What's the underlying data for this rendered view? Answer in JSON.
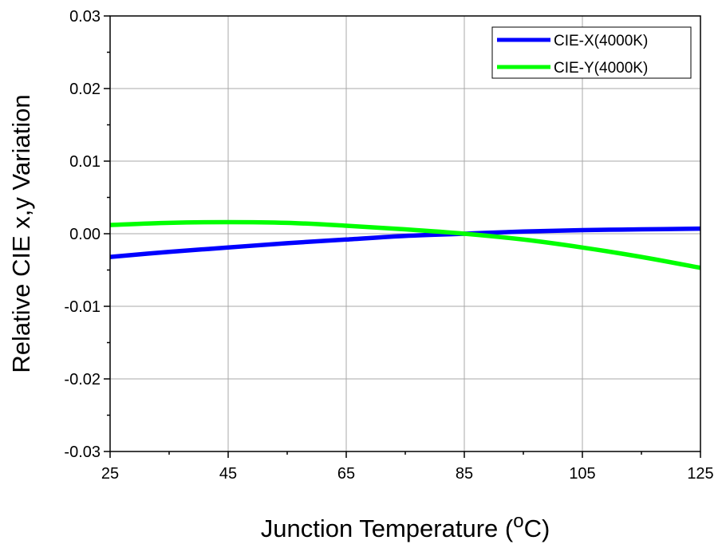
{
  "chart_data": {
    "type": "line",
    "title": "",
    "xlabel": "Junction Temperature (",
    "xlabel_sup": "o",
    "xlabel_suffix": "C)",
    "ylabel": "Relative CIE x,y Variation",
    "xlim": [
      25,
      125
    ],
    "ylim": [
      -0.03,
      0.03
    ],
    "x_ticks": [
      25,
      45,
      65,
      85,
      105,
      125
    ],
    "x_tick_labels": [
      "25",
      "45",
      "65",
      "85",
      "105",
      "125"
    ],
    "y_ticks": [
      -0.03,
      -0.02,
      -0.01,
      0.0,
      0.01,
      0.02,
      0.03
    ],
    "y_tick_labels": [
      "-0.03",
      "-0.02",
      "-0.01",
      "0.00",
      "0.01",
      "0.02",
      "0.03"
    ],
    "grid": true,
    "legend_position": "top-right",
    "x": [
      25,
      35,
      45,
      55,
      65,
      75,
      85,
      95,
      105,
      115,
      125
    ],
    "series": [
      {
        "name": "CIE-X(4000K)",
        "color": "#0000ff",
        "values": [
          -0.0032,
          -0.0025,
          -0.0019,
          -0.0013,
          -0.0008,
          -0.0003,
          0.0,
          0.0003,
          0.0005,
          0.0006,
          0.0007
        ]
      },
      {
        "name": "CIE-Y(4000K)",
        "color": "#00ff00",
        "values": [
          0.0012,
          0.0015,
          0.0016,
          0.0015,
          0.0011,
          0.0006,
          0.0,
          -0.0008,
          -0.0019,
          -0.0032,
          -0.0047
        ]
      }
    ]
  }
}
